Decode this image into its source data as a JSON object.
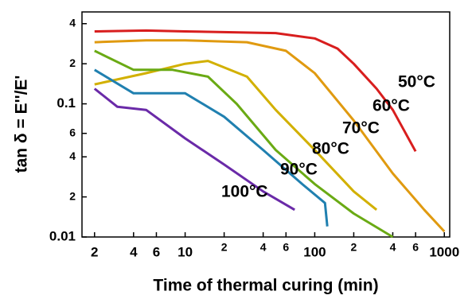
{
  "chart_data": {
    "type": "line",
    "y_label": "tan δ = E''/E'",
    "x_label": "Time of thermal curing  (min)",
    "xlog": true,
    "ylog": true,
    "xlim": [
      1.6,
      1100
    ],
    "ylim": [
      0.01,
      0.49
    ],
    "xticks": [
      2,
      4,
      6,
      10,
      20,
      40,
      60,
      100,
      200,
      400,
      600,
      1000
    ],
    "xticks_minor_labels": [
      {
        "value": 20,
        "label": "2"
      },
      {
        "value": 40,
        "label": "4"
      },
      {
        "value": 60,
        "label": "6"
      },
      {
        "value": 200,
        "label": "2"
      },
      {
        "value": 400,
        "label": "4"
      },
      {
        "value": 600,
        "label": "6"
      }
    ],
    "yticks": [
      {
        "value": 0.4,
        "label": "4"
      },
      {
        "value": 0.2,
        "label": "2"
      },
      0.1,
      {
        "value": 0.06,
        "label": "6"
      },
      {
        "value": 0.04,
        "label": "4"
      },
      {
        "value": 0.02,
        "label": "2"
      },
      0.01
    ],
    "series": [
      {
        "name": "50°C",
        "color": "#d81e1e",
        "x": [
          2,
          5,
          10,
          50,
          100,
          150,
          200,
          300,
          400,
          600
        ],
        "values": [
          0.35,
          0.355,
          0.35,
          0.34,
          0.31,
          0.26,
          0.2,
          0.13,
          0.09,
          0.044
        ]
      },
      {
        "name": "60°C",
        "color": "#e09a10",
        "x": [
          2,
          5,
          10,
          30,
          60,
          100,
          200,
          400,
          700,
          1000
        ],
        "values": [
          0.29,
          0.3,
          0.3,
          0.29,
          0.25,
          0.17,
          0.075,
          0.03,
          0.016,
          0.011
        ]
      },
      {
        "name": "70°C",
        "color": "#d2b000",
        "x": [
          2,
          5,
          10,
          15,
          30,
          50,
          100,
          200,
          300
        ],
        "values": [
          0.14,
          0.17,
          0.2,
          0.21,
          0.16,
          0.09,
          0.045,
          0.022,
          0.016
        ]
      },
      {
        "name": "80°C",
        "color": "#6aaa14",
        "x": [
          2,
          4,
          8,
          15,
          25,
          50,
          100,
          200,
          400
        ],
        "values": [
          0.25,
          0.18,
          0.18,
          0.16,
          0.1,
          0.045,
          0.025,
          0.015,
          0.01
        ]
      },
      {
        "name": "90°C",
        "color": "#2080b0",
        "x": [
          2,
          4,
          10,
          20,
          40,
          80,
          120,
          125
        ],
        "values": [
          0.18,
          0.12,
          0.12,
          0.08,
          0.045,
          0.025,
          0.018,
          0.012
        ]
      },
      {
        "name": "100°C",
        "color": "#6a2aa8",
        "x": [
          2,
          3,
          5,
          10,
          20,
          40,
          70
        ],
        "values": [
          0.13,
          0.095,
          0.09,
          0.055,
          0.035,
          0.022,
          0.016
        ]
      }
    ]
  }
}
